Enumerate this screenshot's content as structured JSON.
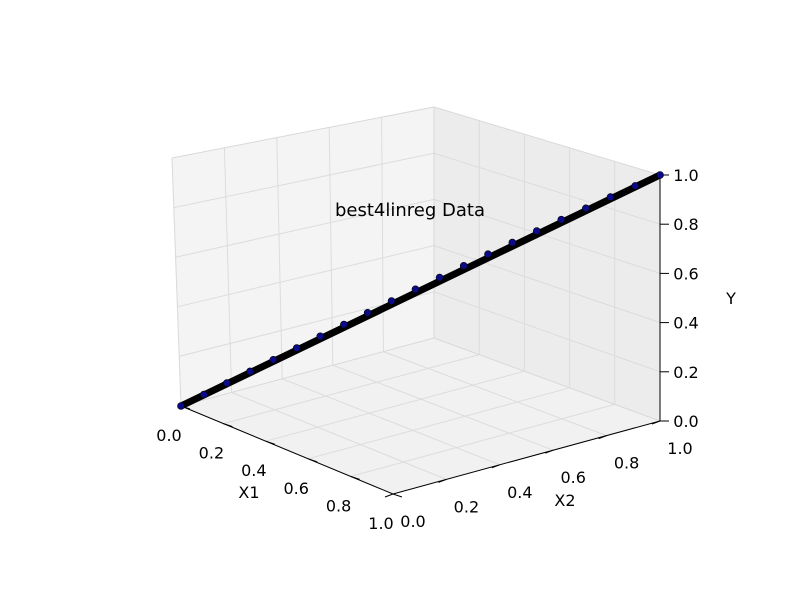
{
  "chart_data": {
    "type": "scatter",
    "projection": "3d",
    "title": "best4linreg Data",
    "xlabel": "X1",
    "ylabel": "X2",
    "zlabel": "Y",
    "xlim": [
      0.0,
      1.0
    ],
    "ylim": [
      0.0,
      1.0
    ],
    "zlim": [
      0.0,
      1.0
    ],
    "grid": true,
    "point_color": "#0b0b8a",
    "x_ticks": [
      "0.0",
      "0.2",
      "0.4",
      "0.6",
      "0.8",
      "1.0"
    ],
    "y_ticks": [
      "0.0",
      "0.2",
      "0.4",
      "0.6",
      "0.8",
      "1.0"
    ],
    "z_ticks": [
      "0.0",
      "0.2",
      "0.4",
      "0.6",
      "0.8",
      "1.0"
    ],
    "series": [
      {
        "points_x1_equals_x2_equals_y": true,
        "values": [
          0.0,
          0.05,
          0.1,
          0.15,
          0.2,
          0.25,
          0.3,
          0.35,
          0.4,
          0.45,
          0.5,
          0.55,
          0.6,
          0.65,
          0.7,
          0.75,
          0.8,
          0.85,
          0.9,
          0.95,
          1.0
        ]
      }
    ]
  }
}
